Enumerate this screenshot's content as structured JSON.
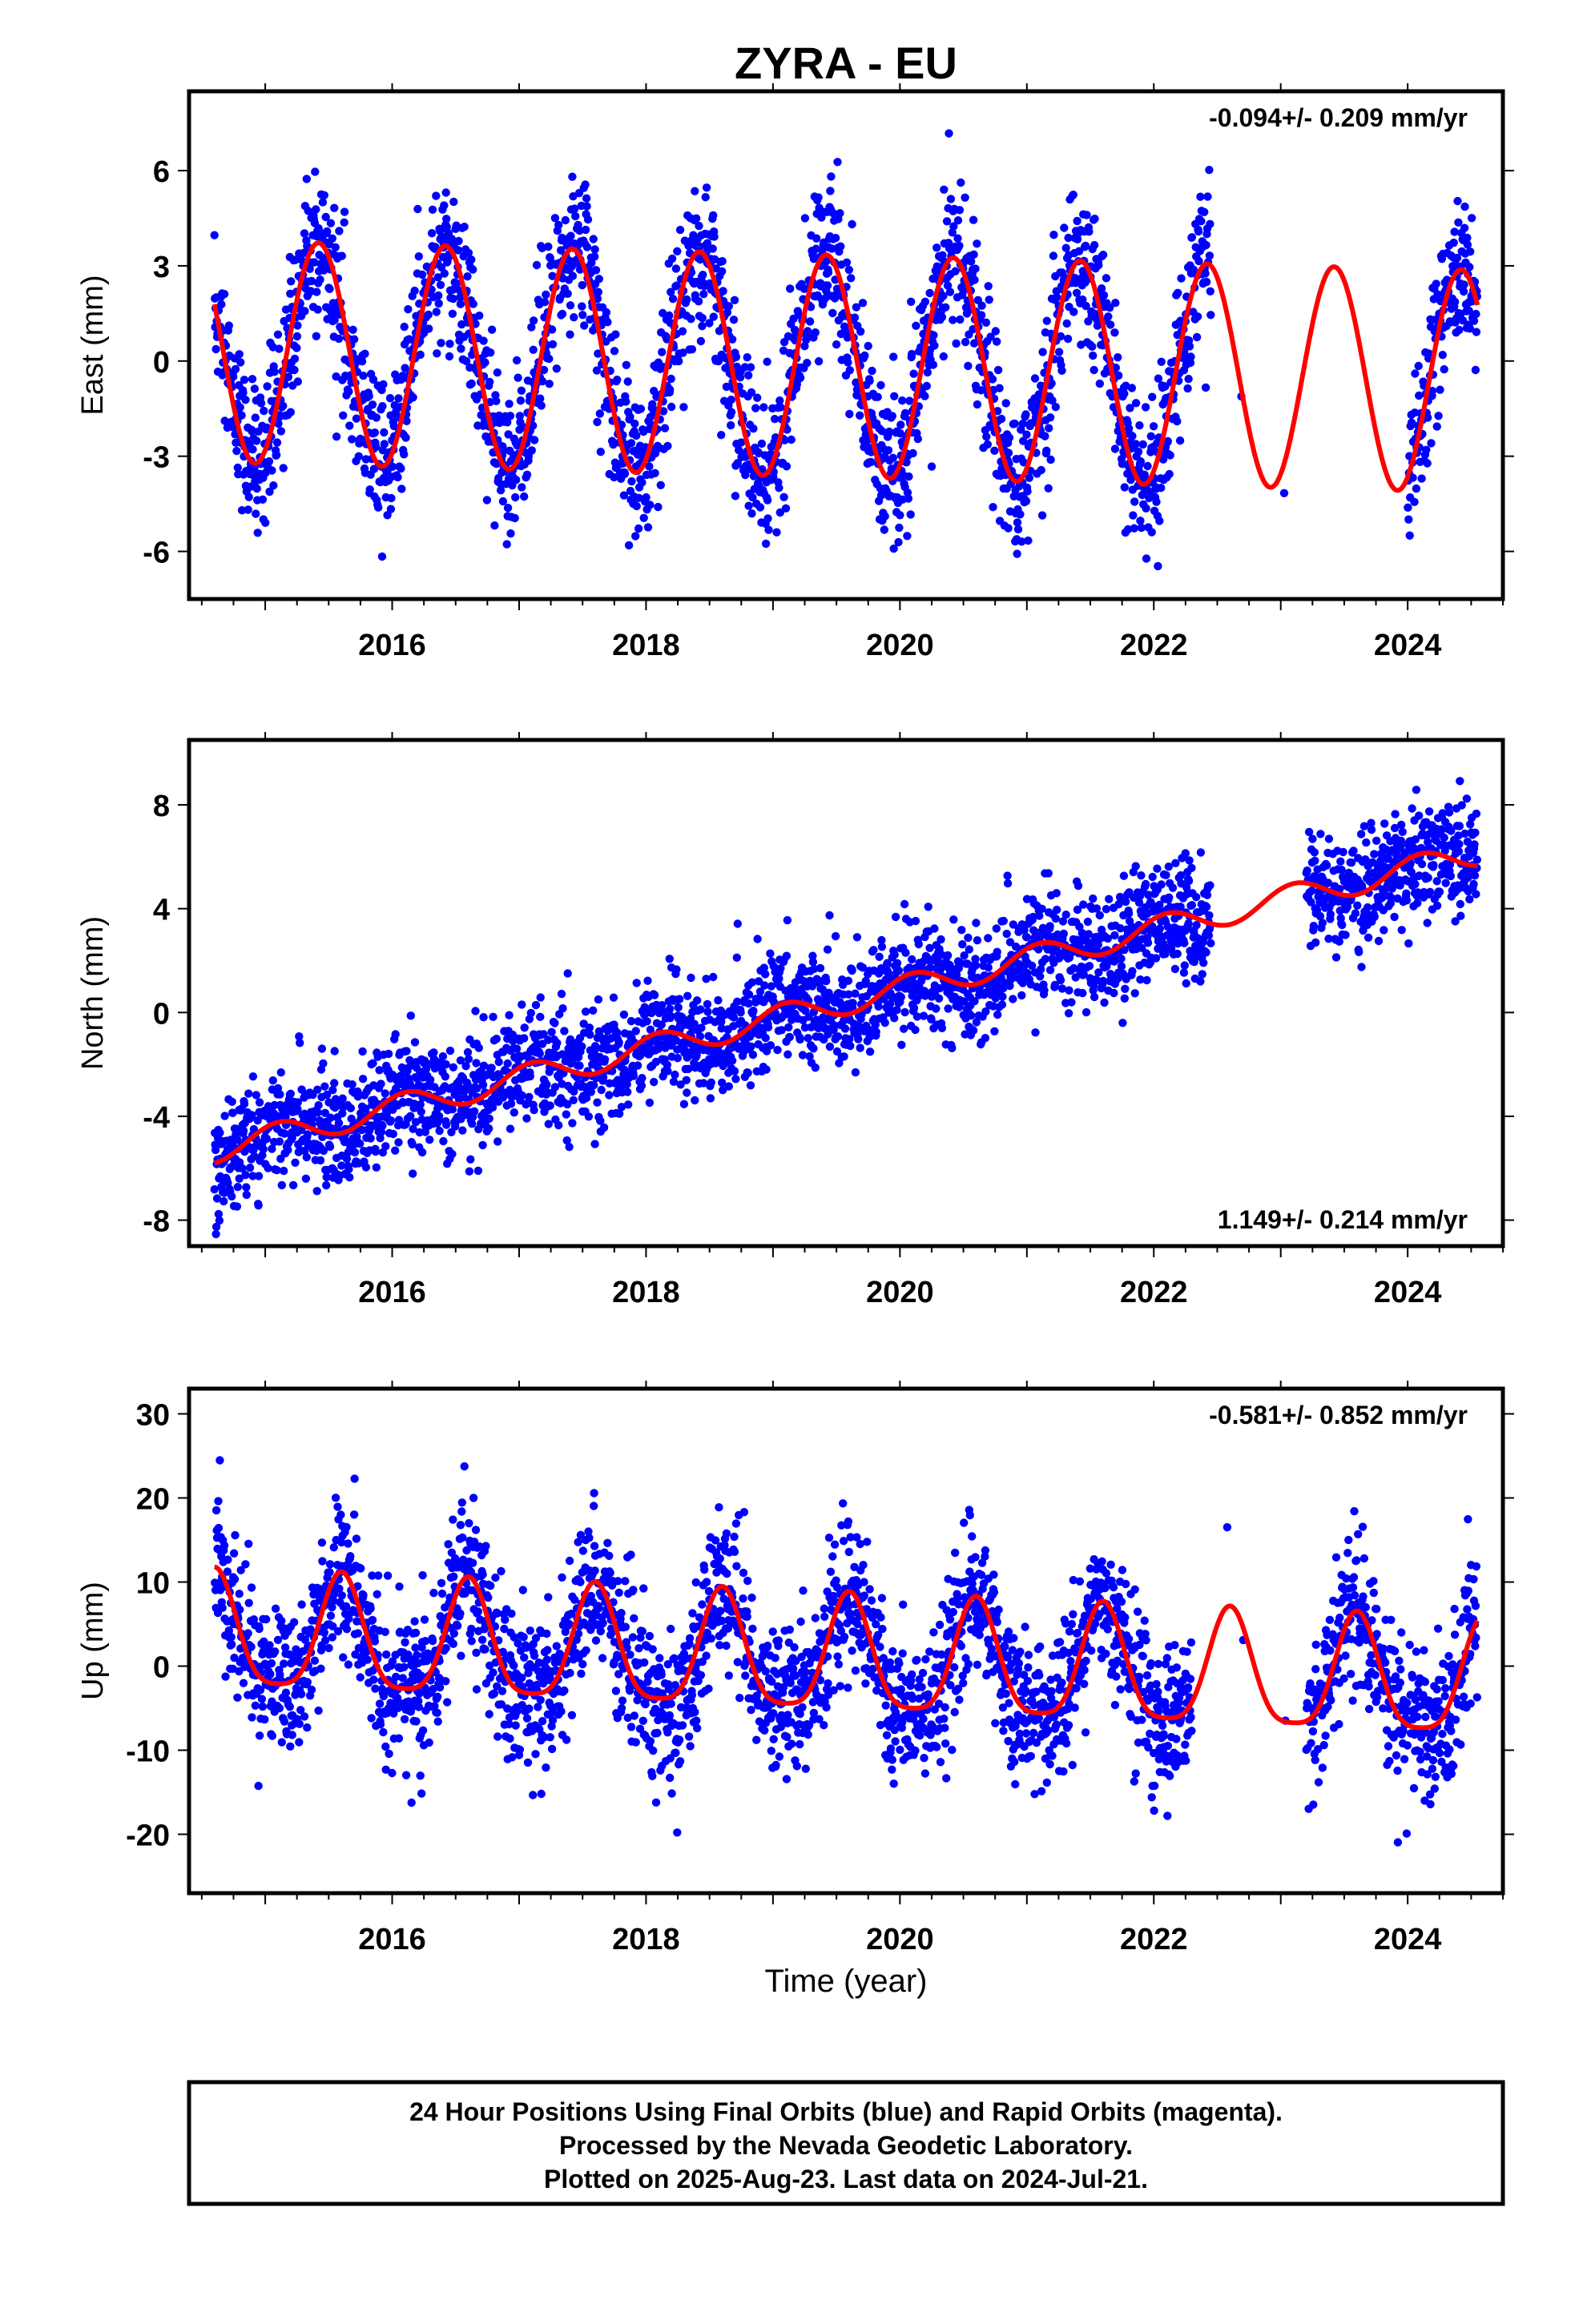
{
  "title": "ZYRA - EU",
  "x_axis_label": "Time (year)",
  "footnote": [
    "24 Hour Positions Using Final Orbits (blue) and Rapid Orbits (magenta).",
    "Processed by the Nevada Geodetic Laboratory.",
    "Plotted on 2025-Aug-23. Last data on 2024-Jul-21."
  ],
  "colors": {
    "points": "#0000ff",
    "model": "#ff0000",
    "frame": "#000000"
  },
  "chart_data": [
    {
      "type": "scatter",
      "component": "east",
      "ylabel": "East (mm)",
      "rate_label": "-0.094+/- 0.209 mm/yr",
      "rate_label_position": "top-right",
      "xlim": [
        2014.4,
        2024.75
      ],
      "ylim": [
        -7.5,
        8.5
      ],
      "xticks": [
        2016,
        2018,
        2020,
        2022,
        2024
      ],
      "yticks": [
        -6,
        -3,
        0,
        3,
        6
      ],
      "data_start": 2014.6,
      "data_end": 2024.55,
      "gaps": [
        [
          2022.45,
          2024.0
        ]
      ],
      "model": {
        "offset": 0.3,
        "trend_mm_per_year": -0.094,
        "annual_amplitude": 3.5,
        "annual_peak_year_fraction": 0.42,
        "semiannual_amplitude": 0.0
      },
      "scatter_sigma": 1.2,
      "series": [
        {
          "name": "",
          "kind": "daily positions",
          "color": "#0000ff"
        },
        {
          "name": "",
          "kind": "model fit",
          "color": "#ff0000"
        }
      ]
    },
    {
      "type": "scatter",
      "component": "north",
      "ylabel": "North (mm)",
      "rate_label": "1.149+/- 0.214 mm/yr",
      "rate_label_position": "bottom-right",
      "xlim": [
        2014.4,
        2024.75
      ],
      "ylim": [
        -9,
        10.5
      ],
      "xticks": [
        2016,
        2018,
        2020,
        2022,
        2024
      ],
      "yticks": [
        -8,
        -4,
        0,
        4,
        8
      ],
      "data_start": 2014.6,
      "data_end": 2024.55,
      "gaps": [
        [
          2022.45,
          2023.2
        ]
      ],
      "model": {
        "offset": -5.3,
        "trend_mm_per_year": 1.149,
        "annual_amplitude": 0.5,
        "annual_peak_year_fraction": 0.1,
        "semiannual_amplitude": 0.0
      },
      "scatter_sigma": 1.1,
      "series": [
        {
          "name": "",
          "kind": "daily positions",
          "color": "#0000ff"
        },
        {
          "name": "",
          "kind": "model fit",
          "color": "#ff0000"
        }
      ]
    },
    {
      "type": "scatter",
      "component": "up",
      "ylabel": "Up (mm)",
      "rate_label": "-0.581+/- 0.852 mm/yr",
      "rate_label_position": "top-right",
      "xlim": [
        2014.4,
        2024.75
      ],
      "ylim": [
        -27,
        33
      ],
      "xticks": [
        2016,
        2018,
        2020,
        2022,
        2024
      ],
      "yticks": [
        -20,
        -10,
        0,
        10,
        20,
        30
      ],
      "data_start": 2014.6,
      "data_end": 2024.55,
      "gaps": [
        [
          2022.3,
          2023.2
        ]
      ],
      "model": {
        "offset": 3.5,
        "trend_mm_per_year": -0.581,
        "annual_amplitude": 6.8,
        "annual_peak_year_fraction": 0.6,
        "semiannual_amplitude": 1.5
      },
      "scatter_sigma": 4.5,
      "series": [
        {
          "name": "",
          "kind": "daily positions",
          "color": "#0000ff"
        },
        {
          "name": "",
          "kind": "model fit",
          "color": "#ff0000"
        }
      ]
    }
  ]
}
